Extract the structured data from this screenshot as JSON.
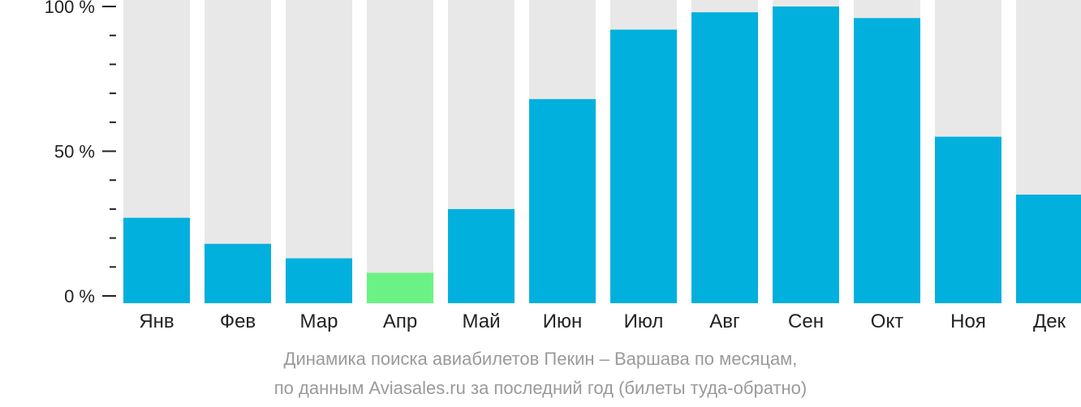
{
  "chart_data": {
    "type": "bar",
    "categories": [
      "Янв",
      "Фев",
      "Мар",
      "Апр",
      "Май",
      "Июн",
      "Июл",
      "Авг",
      "Сен",
      "Окт",
      "Ноя",
      "Дек"
    ],
    "values": [
      27,
      18,
      13,
      8,
      30,
      68,
      92,
      98,
      100,
      96,
      55,
      35
    ],
    "ylim": [
      0,
      100
    ],
    "yticks": [
      {
        "value": 0,
        "label": "0 %"
      },
      {
        "value": 50,
        "label": "50 %"
      },
      {
        "value": 100,
        "label": "100 %"
      }
    ],
    "minor_tick_step": 10,
    "highlight_index": 3,
    "colors": {
      "bar": "#02b0dd",
      "highlight": "#6bf285",
      "track": "#e8e8e8",
      "axis": "#222222"
    },
    "caption": [
      "Динамика поиска авиабилетов Пекин – Варшава по месяцам,",
      "по данным Aviasales.ru за последний год (билеты туда-обратно)"
    ]
  }
}
